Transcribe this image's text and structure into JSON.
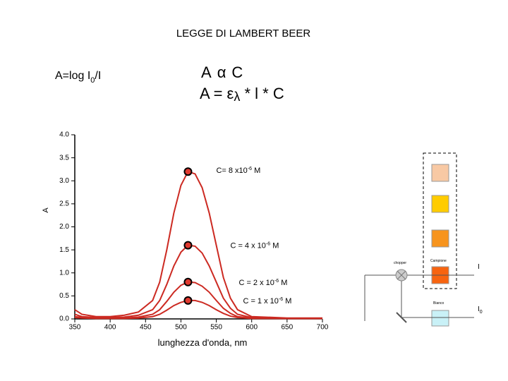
{
  "header": {
    "title": "LEGGE DI LAMBERT BEER"
  },
  "formulas": {
    "absorbance": {
      "main": "A=log I",
      "sub": "0",
      "rest": "/I"
    },
    "proportional": {
      "a": "A",
      "symbol": "α",
      "c": "C"
    },
    "law": {
      "a": "A = ",
      "epsilon": "ε",
      "lambda": "λ",
      "rest": " * l * C"
    }
  },
  "chart_data": {
    "type": "line",
    "x_label": "lunghezza d'onda, nm",
    "y_label": "A",
    "x": [
      350,
      360,
      380,
      400,
      420,
      440,
      460,
      470,
      480,
      490,
      500,
      510,
      520,
      530,
      540,
      550,
      560,
      570,
      580,
      600,
      650,
      700
    ],
    "series": [
      {
        "color": "#cc2a22",
        "values": [
          0.2,
          0.1,
          0.05,
          0.05,
          0.08,
          0.15,
          0.4,
          0.8,
          1.5,
          2.3,
          2.9,
          3.2,
          3.15,
          2.85,
          2.3,
          1.6,
          0.9,
          0.45,
          0.2,
          0.05,
          0.02,
          0.02
        ]
      },
      {
        "color": "#cc2a22",
        "values": [
          0.1,
          0.05,
          0.03,
          0.03,
          0.04,
          0.08,
          0.2,
          0.4,
          0.75,
          1.15,
          1.45,
          1.6,
          1.58,
          1.43,
          1.15,
          0.8,
          0.45,
          0.23,
          0.1,
          0.03,
          0.01,
          0.01
        ]
      },
      {
        "color": "#cc2a22",
        "values": [
          0.05,
          0.03,
          0.02,
          0.02,
          0.02,
          0.04,
          0.1,
          0.2,
          0.38,
          0.58,
          0.73,
          0.8,
          0.79,
          0.71,
          0.58,
          0.4,
          0.23,
          0.12,
          0.05,
          0.02,
          0.01,
          0.01
        ]
      },
      {
        "color": "#cc2a22",
        "values": [
          0.03,
          0.02,
          0.01,
          0.01,
          0.01,
          0.02,
          0.05,
          0.1,
          0.19,
          0.29,
          0.36,
          0.4,
          0.4,
          0.36,
          0.29,
          0.2,
          0.12,
          0.06,
          0.03,
          0.01,
          0.01,
          0.01
        ]
      }
    ],
    "peak_index": 11,
    "annotations": [
      {
        "text": "C= 8 x10",
        "sup": "-6",
        "unit": " M"
      },
      {
        "text": "C = 4 x 10",
        "sup": "-6",
        "unit": " M"
      },
      {
        "text": "C = 2 x 10",
        "sup": "-6",
        "unit": " M"
      },
      {
        "text": "C = 1 x 10",
        "sup": "-6",
        "unit": " M"
      }
    ],
    "xlim": [
      350,
      700
    ],
    "ylim": [
      0,
      4
    ],
    "xticks": [
      350,
      400,
      450,
      500,
      550,
      600,
      650,
      700
    ],
    "yticks": [
      {
        "value": 0,
        "label": "0.0"
      },
      {
        "value": 0.5,
        "label": "0.5"
      },
      {
        "value": 1,
        "label": "1.0"
      },
      {
        "value": 1.5,
        "label": "1.5"
      },
      {
        "value": 2,
        "label": "2.0"
      },
      {
        "value": 2.5,
        "label": "2.5"
      },
      {
        "value": 3,
        "label": "3.0"
      },
      {
        "value": 3.5,
        "label": "3.5"
      },
      {
        "value": 4,
        "label": "4.0"
      }
    ]
  },
  "diagram": {
    "chopper": "chopper",
    "sample": "Campione",
    "blank": "Bianco",
    "i_label": "I",
    "i0_main": "I",
    "i0_sub": "0"
  }
}
